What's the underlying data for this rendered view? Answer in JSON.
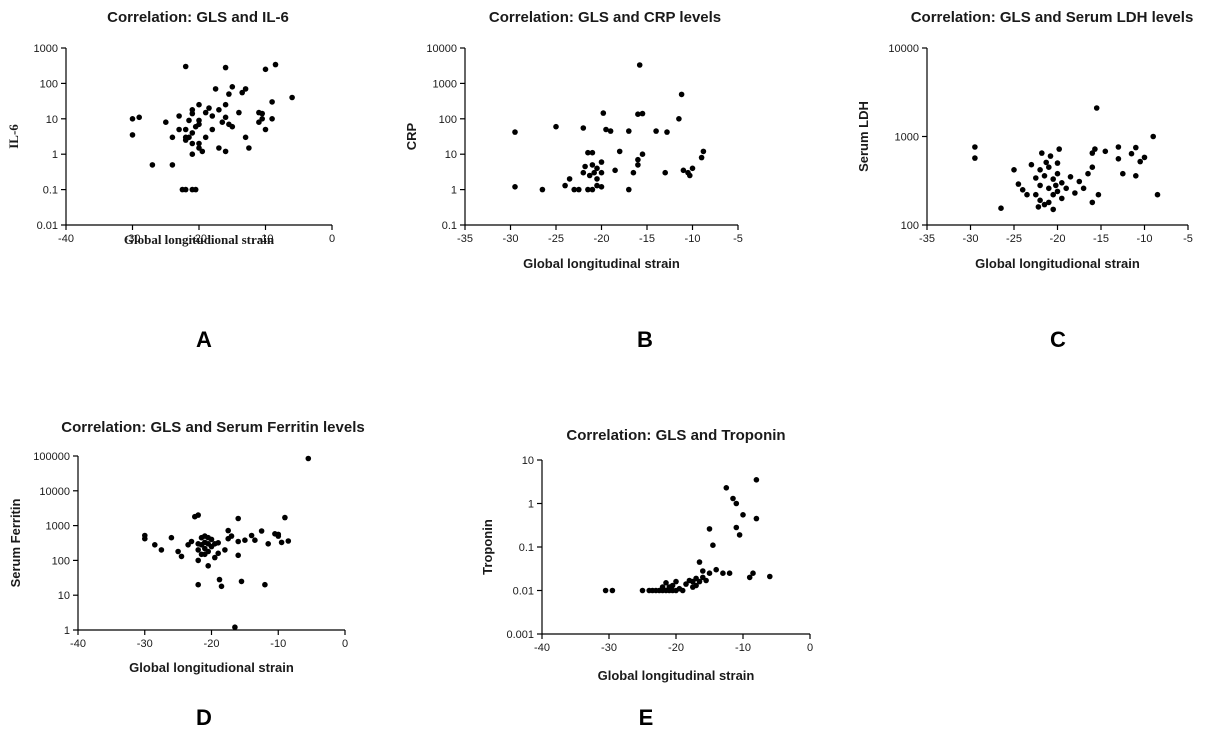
{
  "chart_data": [
    {
      "panel": "A",
      "type": "scatter",
      "title": "Correlation: GLS and IL-6",
      "xlabel": "Global longitudional strain",
      "ylabel": "IL-6",
      "yscale": "log",
      "xlim": [
        -40,
        0
      ],
      "ylim": [
        0.01,
        1000
      ],
      "xticks": [
        "-40",
        "-30",
        "-20",
        "-10",
        "0"
      ],
      "yticks": [
        "0.01",
        "0.1",
        "1",
        "10",
        "100",
        "1000"
      ],
      "grid": false,
      "points": [
        [
          -30,
          10
        ],
        [
          -30,
          3.5
        ],
        [
          -29,
          11
        ],
        [
          -27,
          0.5
        ],
        [
          -25,
          8
        ],
        [
          -24,
          0.5
        ],
        [
          -24,
          3
        ],
        [
          -23,
          5
        ],
        [
          -23,
          12
        ],
        [
          -22.5,
          0.1
        ],
        [
          -22,
          0.1
        ],
        [
          -22,
          2.5
        ],
        [
          -22,
          3
        ],
        [
          -22,
          5
        ],
        [
          -22,
          300
        ],
        [
          -21.5,
          3
        ],
        [
          -21.5,
          9
        ],
        [
          -21,
          0.1
        ],
        [
          -21,
          1
        ],
        [
          -21,
          2
        ],
        [
          -21,
          4
        ],
        [
          -21,
          14
        ],
        [
          -21,
          18
        ],
        [
          -20.5,
          0.1
        ],
        [
          -20.5,
          6
        ],
        [
          -20,
          1.5
        ],
        [
          -20,
          2
        ],
        [
          -20,
          7
        ],
        [
          -20,
          9
        ],
        [
          -20,
          25
        ],
        [
          -19.5,
          1.2
        ],
        [
          -19,
          3
        ],
        [
          -19,
          15
        ],
        [
          -18.5,
          20
        ],
        [
          -18,
          5
        ],
        [
          -18,
          12
        ],
        [
          -17.5,
          70
        ],
        [
          -17,
          18
        ],
        [
          -17,
          1.5
        ],
        [
          -16.5,
          8
        ],
        [
          -16,
          1.2
        ],
        [
          -16,
          11
        ],
        [
          -16,
          25
        ],
        [
          -16,
          280
        ],
        [
          -15.5,
          7
        ],
        [
          -15.5,
          50
        ],
        [
          -15,
          80
        ],
        [
          -15,
          6
        ],
        [
          -14,
          15
        ],
        [
          -13.5,
          55
        ],
        [
          -13,
          70
        ],
        [
          -13,
          3
        ],
        [
          -12.5,
          1.5
        ],
        [
          -11,
          8
        ],
        [
          -11,
          15
        ],
        [
          -10.5,
          10
        ],
        [
          -10.5,
          14
        ],
        [
          -10,
          5
        ],
        [
          -10,
          250
        ],
        [
          -9,
          10
        ],
        [
          -9,
          30
        ],
        [
          -8.5,
          340
        ],
        [
          -6,
          40
        ]
      ]
    },
    {
      "panel": "B",
      "type": "scatter",
      "title": "Correlation: GLS and CRP levels",
      "xlabel": "Global longitudinal strain",
      "ylabel": "CRP",
      "yscale": "log",
      "xlim": [
        -35,
        -5
      ],
      "ylim": [
        0.1,
        10000
      ],
      "xticks": [
        "-35",
        "-30",
        "-25",
        "-20",
        "-15",
        "-10",
        "-5"
      ],
      "yticks": [
        "0.1",
        "1",
        "10",
        "100",
        "1000",
        "10000"
      ],
      "grid": false,
      "points": [
        [
          -29.5,
          1.2
        ],
        [
          -29.5,
          42
        ],
        [
          -26.5,
          1
        ],
        [
          -25,
          60
        ],
        [
          -24,
          1.3
        ],
        [
          -23.5,
          2
        ],
        [
          -23,
          1
        ],
        [
          -22.5,
          1
        ],
        [
          -22,
          3
        ],
        [
          -22,
          55
        ],
        [
          -21.8,
          4.5
        ],
        [
          -21.5,
          1
        ],
        [
          -21.5,
          11
        ],
        [
          -21.3,
          2.5
        ],
        [
          -21,
          1
        ],
        [
          -21,
          5
        ],
        [
          -21,
          11
        ],
        [
          -20.8,
          3
        ],
        [
          -20.5,
          1.3
        ],
        [
          -20.5,
          2
        ],
        [
          -20.5,
          4
        ],
        [
          -20,
          1.2
        ],
        [
          -20,
          3
        ],
        [
          -20,
          6
        ],
        [
          -19.8,
          145
        ],
        [
          -19.5,
          50
        ],
        [
          -19,
          45
        ],
        [
          -18.5,
          3.5
        ],
        [
          -18,
          12
        ],
        [
          -17,
          1
        ],
        [
          -17,
          45
        ],
        [
          -16.5,
          3
        ],
        [
          -16,
          5
        ],
        [
          -16,
          7
        ],
        [
          -16,
          135
        ],
        [
          -15.8,
          3300
        ],
        [
          -15.5,
          10
        ],
        [
          -15.5,
          140
        ],
        [
          -14,
          45
        ],
        [
          -13,
          3
        ],
        [
          -12.8,
          42
        ],
        [
          -11.5,
          100
        ],
        [
          -11.2,
          490
        ],
        [
          -11,
          3.5
        ],
        [
          -10.5,
          3
        ],
        [
          -10.3,
          2.5
        ],
        [
          -10,
          4
        ],
        [
          -9,
          8
        ],
        [
          -8.8,
          12
        ]
      ]
    },
    {
      "panel": "C",
      "type": "scatter",
      "title": "Correlation: GLS and Serum LDH levels",
      "xlabel": "Global longitudional strain",
      "ylabel": "Serum LDH",
      "yscale": "log",
      "xlim": [
        -35,
        -5
      ],
      "ylim": [
        100,
        10000
      ],
      "xticks": [
        "-35",
        "-30",
        "-25",
        "-20",
        "-15",
        "-10",
        "-5"
      ],
      "yticks": [
        "100",
        "1000",
        "10000"
      ],
      "grid": false,
      "points": [
        [
          -29.5,
          570
        ],
        [
          -29.5,
          760
        ],
        [
          -26.5,
          155
        ],
        [
          -25,
          420
        ],
        [
          -24.5,
          290
        ],
        [
          -24,
          250
        ],
        [
          -23.5,
          220
        ],
        [
          -23,
          480
        ],
        [
          -22.5,
          220
        ],
        [
          -22.5,
          340
        ],
        [
          -22.2,
          160
        ],
        [
          -22,
          190
        ],
        [
          -22,
          280
        ],
        [
          -22,
          420
        ],
        [
          -21.8,
          650
        ],
        [
          -21.5,
          170
        ],
        [
          -21.5,
          360
        ],
        [
          -21.3,
          510
        ],
        [
          -21,
          180
        ],
        [
          -21,
          260
        ],
        [
          -21,
          450
        ],
        [
          -20.8,
          600
        ],
        [
          -20.5,
          150
        ],
        [
          -20.5,
          220
        ],
        [
          -20.5,
          330
        ],
        [
          -20.2,
          280
        ],
        [
          -20,
          240
        ],
        [
          -20,
          380
        ],
        [
          -20,
          500
        ],
        [
          -19.8,
          720
        ],
        [
          -19.5,
          200
        ],
        [
          -19.5,
          300
        ],
        [
          -19,
          260
        ],
        [
          -18.5,
          350
        ],
        [
          -18,
          230
        ],
        [
          -17.5,
          310
        ],
        [
          -17,
          260
        ],
        [
          -16.5,
          380
        ],
        [
          -16,
          180
        ],
        [
          -16,
          450
        ],
        [
          -16,
          650
        ],
        [
          -15.7,
          720
        ],
        [
          -15.5,
          2100
        ],
        [
          -15.3,
          220
        ],
        [
          -14.5,
          680
        ],
        [
          -13,
          560
        ],
        [
          -13,
          760
        ],
        [
          -12.5,
          380
        ],
        [
          -11.5,
          640
        ],
        [
          -11,
          360
        ],
        [
          -11,
          750
        ],
        [
          -10.5,
          520
        ],
        [
          -10,
          580
        ],
        [
          -9,
          1000
        ],
        [
          -8.5,
          220
        ]
      ]
    },
    {
      "panel": "D",
      "type": "scatter",
      "title": "Correlation: GLS and Serum Ferritin levels",
      "xlabel": "Global longitudional strain",
      "ylabel": "Serum Ferritin",
      "yscale": "log",
      "xlim": [
        -40,
        0
      ],
      "ylim": [
        1,
        100000
      ],
      "xticks": [
        "-40",
        "-30",
        "-20",
        "-10",
        "0"
      ],
      "yticks": [
        "1",
        "10",
        "100",
        "1000",
        "10000",
        "100000"
      ],
      "grid": false,
      "points": [
        [
          -30,
          420
        ],
        [
          -30,
          520
        ],
        [
          -28.5,
          280
        ],
        [
          -27.5,
          200
        ],
        [
          -26,
          450
        ],
        [
          -25,
          180
        ],
        [
          -24.5,
          130
        ],
        [
          -23.5,
          280
        ],
        [
          -23,
          350
        ],
        [
          -22.5,
          1800
        ],
        [
          -22,
          20
        ],
        [
          -22,
          100
        ],
        [
          -22,
          200
        ],
        [
          -22,
          300
        ],
        [
          -22,
          2000
        ],
        [
          -21.5,
          150
        ],
        [
          -21.5,
          280
        ],
        [
          -21.5,
          450
        ],
        [
          -21,
          150
        ],
        [
          -21,
          220
        ],
        [
          -21,
          330
        ],
        [
          -21,
          500
        ],
        [
          -20.5,
          70
        ],
        [
          -20.5,
          180
        ],
        [
          -20.5,
          300
        ],
        [
          -20.5,
          450
        ],
        [
          -20,
          250
        ],
        [
          -20,
          400
        ],
        [
          -19.5,
          120
        ],
        [
          -19.5,
          300
        ],
        [
          -19,
          160
        ],
        [
          -19,
          320
        ],
        [
          -18.8,
          28
        ],
        [
          -18.5,
          18
        ],
        [
          -18,
          200
        ],
        [
          -17.5,
          420
        ],
        [
          -17.5,
          720
        ],
        [
          -17,
          500
        ],
        [
          -16.5,
          1.2
        ],
        [
          -16,
          140
        ],
        [
          -16,
          350
        ],
        [
          -16,
          1600
        ],
        [
          -15.5,
          25
        ],
        [
          -15,
          380
        ],
        [
          -14,
          520
        ],
        [
          -13.5,
          380
        ],
        [
          -12.5,
          700
        ],
        [
          -12,
          20
        ],
        [
          -11.5,
          300
        ],
        [
          -10.5,
          580
        ],
        [
          -10,
          560
        ],
        [
          -10,
          500
        ],
        [
          -9.5,
          330
        ],
        [
          -9,
          1700
        ],
        [
          -8.5,
          360
        ],
        [
          -5.5,
          85000
        ]
      ]
    },
    {
      "panel": "E",
      "type": "scatter",
      "title": "Correlation: GLS and Troponin",
      "xlabel": "Global longitudinal strain",
      "ylabel": "Troponin",
      "yscale": "log",
      "xlim": [
        -40,
        0
      ],
      "ylim": [
        0.001,
        10
      ],
      "xticks": [
        "-40",
        "-30",
        "-20",
        "-10",
        "0"
      ],
      "yticks": [
        "0.001",
        "0.01",
        "0.1",
        "1",
        "10"
      ],
      "grid": false,
      "points": [
        [
          -30.5,
          0.01
        ],
        [
          -29.5,
          0.01
        ],
        [
          -25,
          0.01
        ],
        [
          -24,
          0.01
        ],
        [
          -23.5,
          0.01
        ],
        [
          -23,
          0.01
        ],
        [
          -22.5,
          0.01
        ],
        [
          -22,
          0.01
        ],
        [
          -22,
          0.012
        ],
        [
          -21.5,
          0.01
        ],
        [
          -21.5,
          0.015
        ],
        [
          -21,
          0.01
        ],
        [
          -21,
          0.012
        ],
        [
          -20.5,
          0.01
        ],
        [
          -20.5,
          0.013
        ],
        [
          -20,
          0.01
        ],
        [
          -20,
          0.016
        ],
        [
          -19.5,
          0.011
        ],
        [
          -19,
          0.01
        ],
        [
          -18.5,
          0.014
        ],
        [
          -18,
          0.017
        ],
        [
          -17.5,
          0.012
        ],
        [
          -17.5,
          0.016
        ],
        [
          -17,
          0.019
        ],
        [
          -17,
          0.013
        ],
        [
          -16.5,
          0.016
        ],
        [
          -16.5,
          0.045
        ],
        [
          -16,
          0.028
        ],
        [
          -16,
          0.02
        ],
        [
          -15.5,
          0.017
        ],
        [
          -15,
          0.025
        ],
        [
          -15,
          0.26
        ],
        [
          -14.5,
          0.11
        ],
        [
          -14,
          0.03
        ],
        [
          -13,
          0.025
        ],
        [
          -12.5,
          2.3
        ],
        [
          -12,
          0.025
        ],
        [
          -11.5,
          1.3
        ],
        [
          -11,
          1
        ],
        [
          -11,
          0.28
        ],
        [
          -10.5,
          0.19
        ],
        [
          -10,
          0.55
        ],
        [
          -9,
          0.02
        ],
        [
          -8.5,
          0.025
        ],
        [
          -8,
          3.5
        ],
        [
          -8,
          0.45
        ],
        [
          -6,
          0.021
        ]
      ]
    }
  ],
  "panel_letters": [
    "A",
    "B",
    "C",
    "D",
    "E"
  ],
  "marker_color": "#000000"
}
